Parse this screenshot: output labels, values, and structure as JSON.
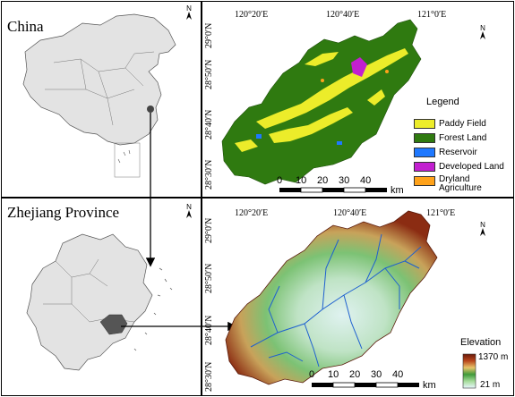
{
  "top_left": {
    "title": "China"
  },
  "bottom_left": {
    "title": "Zhejiang Province"
  },
  "north": {
    "letter": "N"
  },
  "top_map": {
    "lon_labels": [
      "120°20′E",
      "120°40′E",
      "121°0′E"
    ],
    "lat_labels": [
      "29°0′N",
      "28°50′N",
      "28°40′N",
      "28°30′N"
    ],
    "legend_title": "Legend",
    "legend_items": [
      {
        "label": "Paddy Field",
        "color": "#ecec2a"
      },
      {
        "label": "Forest Land",
        "color": "#2f7a10"
      },
      {
        "label": "Reservoir",
        "color": "#1e78ff"
      },
      {
        "label": "Developed Land",
        "color": "#c21fd0"
      },
      {
        "label": "Dryland\nAgriculture",
        "color": "#ffa21a"
      }
    ],
    "scale_ticks": [
      "0",
      "10",
      "20",
      "30",
      "40"
    ],
    "scale_unit": "km"
  },
  "bottom_map": {
    "lon_labels": [
      "120°20′E",
      "120°40′E",
      "121°0′E"
    ],
    "lat_labels": [
      "29°0′N",
      "28°50′N",
      "28°40′N",
      "28°30′N"
    ],
    "elevation_title": "Elevation",
    "elevation_max": "1370 m",
    "elevation_min": "21 m",
    "scale_ticks": [
      "0",
      "10",
      "20",
      "30",
      "40"
    ],
    "scale_unit": "km"
  }
}
